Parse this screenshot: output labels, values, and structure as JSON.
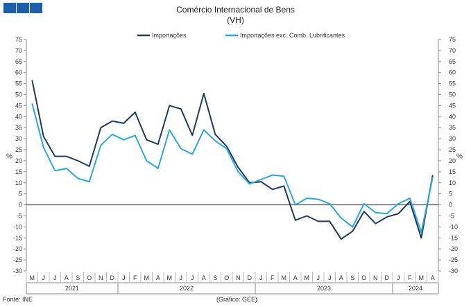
{
  "header": {
    "title": "Comércio Internacional de Bens",
    "subtitle": "(VH)"
  },
  "footer": {
    "source": "Fonte: INE",
    "credit": "(Gráfico: GEE)"
  },
  "colors": {
    "logo": "#1f5ea8",
    "series1": "#1f3a5f",
    "series2": "#29a8e0",
    "axis": "#888888",
    "text": "#333333"
  },
  "chart_data": {
    "type": "line",
    "title": "Comércio Internacional de Bens",
    "subtitle": "(VH)",
    "ylabel": "%",
    "ylabel_right": "%",
    "ylim": [
      -30,
      75
    ],
    "ytick_step": 5,
    "yticks": [
      "75",
      "70",
      "65",
      "60",
      "55",
      "50",
      "45",
      "40",
      "35",
      "30",
      "25",
      "20",
      "15",
      "10",
      "5",
      "0",
      "-5",
      "-10",
      "-15",
      "-20",
      "-25",
      "-30"
    ],
    "grid": false,
    "legend": "top-center",
    "months": [
      "M",
      "J",
      "J",
      "A",
      "S",
      "O",
      "N",
      "D",
      "J",
      "F",
      "M",
      "A",
      "M",
      "J",
      "J",
      "A",
      "S",
      "O",
      "N",
      "D",
      "J",
      "F",
      "M",
      "A",
      "M",
      "J",
      "J",
      "A",
      "S",
      "O",
      "N",
      "D",
      "J",
      "F",
      "M",
      "A"
    ],
    "x": [
      "2021-05",
      "2021-06",
      "2021-07",
      "2021-08",
      "2021-09",
      "2021-10",
      "2021-11",
      "2021-12",
      "2022-01",
      "2022-02",
      "2022-03",
      "2022-04",
      "2022-05",
      "2022-06",
      "2022-07",
      "2022-08",
      "2022-09",
      "2022-10",
      "2022-11",
      "2022-12",
      "2023-01",
      "2023-02",
      "2023-03",
      "2023-04",
      "2023-05",
      "2023-06",
      "2023-07",
      "2023-08",
      "2023-09",
      "2023-10",
      "2023-11",
      "2023-12",
      "2024-01",
      "2024-02",
      "2024-03",
      "2024-04"
    ],
    "years": [
      {
        "label": "2021",
        "start": 0,
        "end": 7
      },
      {
        "label": "2022",
        "start": 8,
        "end": 19
      },
      {
        "label": "2023",
        "start": 20,
        "end": 31
      },
      {
        "label": "2024",
        "start": 32,
        "end": 35
      }
    ],
    "series": [
      {
        "name": "Importações",
        "values": [
          56.5,
          31,
          22,
          22,
          20,
          17.5,
          35,
          38,
          37,
          42,
          29.5,
          27.5,
          45,
          43.5,
          31.5,
          50.5,
          32,
          26.5,
          17,
          10,
          10.5,
          7,
          8.5,
          -7,
          -5,
          -7.5,
          -7.5,
          -15.5,
          -12,
          -3,
          -8.5,
          -5.5,
          -4,
          1.5,
          -15,
          13.5
        ]
      },
      {
        "name": "Importações exc. Comb. Lubrificantes",
        "values": [
          46,
          26,
          15.5,
          16.5,
          12,
          10.5,
          27,
          32,
          29.5,
          31.5,
          20,
          16.5,
          34,
          25.5,
          23,
          34,
          29,
          25.5,
          15,
          9.5,
          11.5,
          13.5,
          13,
          0,
          3,
          2.5,
          0.5,
          -6,
          -10,
          0.5,
          -3.5,
          -4,
          0.5,
          3,
          -12.5,
          12.5
        ]
      }
    ]
  }
}
